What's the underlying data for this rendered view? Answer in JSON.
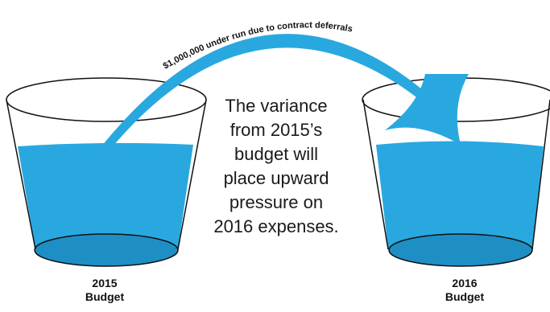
{
  "arrow_caption": "$1,000,000 under run due to contract deferrals",
  "center_text": {
    "lines": [
      "The variance",
      "from 2015’s",
      "budget will",
      "place upward",
      "pressure on",
      "2016 expenses."
    ]
  },
  "left_glass": {
    "year": "2015",
    "label": "Budget"
  },
  "right_glass": {
    "year": "2016",
    "label": "Budget"
  },
  "colors": {
    "water": "#29a8e0",
    "water_dark": "#1e8fc4",
    "outline": "#111111"
  }
}
